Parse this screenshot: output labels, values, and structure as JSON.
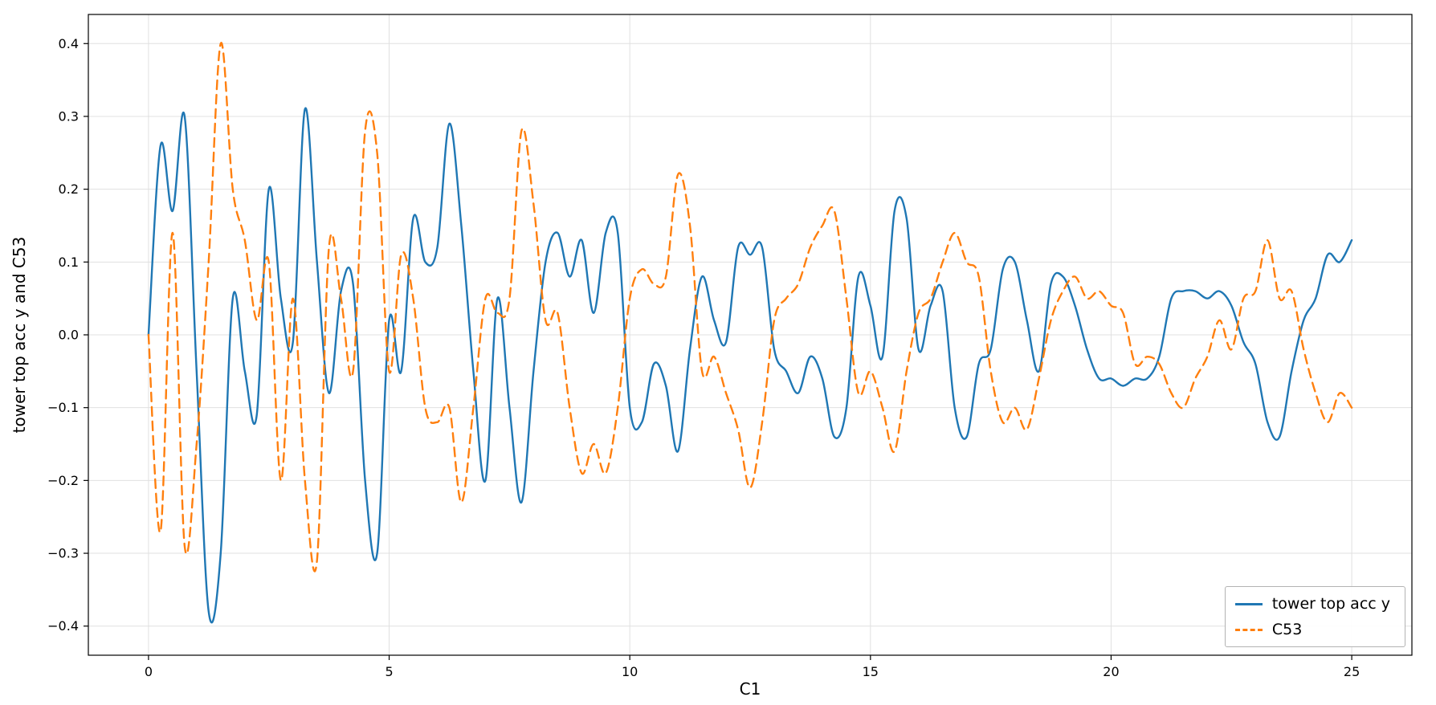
{
  "chart_data": {
    "type": "line",
    "title": "",
    "xlabel": "C1",
    "ylabel": "tower top acc y and C53",
    "xlim": [
      -1.25,
      26.25
    ],
    "ylim": [
      -0.44,
      0.44
    ],
    "xticks": [
      0,
      5,
      10,
      15,
      20,
      25
    ],
    "yticks": [
      -0.4,
      -0.3,
      -0.2,
      -0.1,
      0.0,
      0.1,
      0.2,
      0.3,
      0.4
    ],
    "grid": true,
    "grid_color": "#e0e0e0",
    "frame_color": "#000000",
    "legend_position": "lower right",
    "x": [
      0,
      0.25,
      0.5,
      0.75,
      1,
      1.25,
      1.5,
      1.75,
      2,
      2.25,
      2.5,
      2.75,
      3,
      3.25,
      3.5,
      3.75,
      4,
      4.25,
      4.5,
      4.75,
      5,
      5.25,
      5.5,
      5.75,
      6,
      6.25,
      6.5,
      6.75,
      7,
      7.25,
      7.5,
      7.75,
      8,
      8.25,
      8.5,
      8.75,
      9,
      9.25,
      9.5,
      9.75,
      10,
      10.25,
      10.5,
      10.75,
      11,
      11.25,
      11.5,
      11.75,
      12,
      12.25,
      12.5,
      12.75,
      13,
      13.25,
      13.5,
      13.75,
      14,
      14.25,
      14.5,
      14.75,
      15,
      15.25,
      15.5,
      15.75,
      16,
      16.25,
      16.5,
      16.75,
      17,
      17.25,
      17.5,
      17.75,
      18,
      18.25,
      18.5,
      18.75,
      19,
      19.25,
      19.5,
      19.75,
      20,
      20.25,
      20.5,
      20.75,
      21,
      21.25,
      21.5,
      21.75,
      22,
      22.25,
      22.5,
      22.75,
      23,
      23.25,
      23.5,
      23.75,
      24,
      24.25,
      24.5,
      24.75,
      25
    ],
    "series": [
      {
        "name": "tower top acc y",
        "color": "#1f77b4",
        "style": "solid",
        "values": [
          0,
          0.26,
          0.17,
          0.3,
          -0.05,
          -0.38,
          -0.3,
          0.05,
          -0.05,
          -0.11,
          0.2,
          0.05,
          -0.01,
          0.31,
          0.1,
          -0.08,
          0.06,
          0.07,
          -0.2,
          -0.3,
          0.02,
          -0.05,
          0.16,
          0.1,
          0.12,
          0.29,
          0.15,
          -0.05,
          -0.2,
          0.05,
          -0.1,
          -0.23,
          -0.05,
          0.1,
          0.14,
          0.08,
          0.13,
          0.03,
          0.14,
          0.14,
          -0.1,
          -0.12,
          -0.04,
          -0.07,
          -0.16,
          -0.02,
          0.08,
          0.02,
          -0.01,
          0.12,
          0.11,
          0.12,
          -0.02,
          -0.05,
          -0.08,
          -0.03,
          -0.06,
          -0.14,
          -0.1,
          0.08,
          0.04,
          -0.03,
          0.17,
          0.16,
          -0.02,
          0.04,
          0.06,
          -0.1,
          -0.14,
          -0.04,
          -0.02,
          0.09,
          0.1,
          0.02,
          -0.05,
          0.07,
          0.08,
          0.04,
          -0.02,
          -0.06,
          -0.06,
          -0.07,
          -0.06,
          -0.06,
          -0.03,
          0.05,
          0.06,
          0.06,
          0.05,
          0.06,
          0.04,
          -0.01,
          -0.04,
          -0.12,
          -0.14,
          -0.05,
          0.02,
          0.05,
          0.11,
          0.1,
          0.13
        ]
      },
      {
        "name": "C53",
        "color": "#ff7f0e",
        "style": "dashed",
        "values": [
          0,
          -0.27,
          0.14,
          -0.29,
          -0.15,
          0.1,
          0.4,
          0.2,
          0.13,
          0.02,
          0.1,
          -0.2,
          0.05,
          -0.2,
          -0.31,
          0.12,
          0.05,
          -0.05,
          0.28,
          0.25,
          -0.05,
          0.11,
          0.05,
          -0.1,
          -0.12,
          -0.1,
          -0.23,
          -0.1,
          0.05,
          0.03,
          0.05,
          0.28,
          0.18,
          0.02,
          0.03,
          -0.1,
          -0.19,
          -0.15,
          -0.19,
          -0.1,
          0.05,
          0.09,
          0.07,
          0.08,
          0.22,
          0.15,
          -0.05,
          -0.03,
          -0.08,
          -0.13,
          -0.21,
          -0.12,
          0.02,
          0.05,
          0.07,
          0.12,
          0.15,
          0.17,
          0.05,
          -0.08,
          -0.05,
          -0.1,
          -0.16,
          -0.05,
          0.03,
          0.05,
          0.1,
          0.14,
          0.1,
          0.08,
          -0.05,
          -0.12,
          -0.1,
          -0.13,
          -0.06,
          0.02,
          0.06,
          0.08,
          0.05,
          0.06,
          0.04,
          0.03,
          -0.04,
          -0.03,
          -0.04,
          -0.08,
          -0.1,
          -0.06,
          -0.03,
          0.02,
          -0.02,
          0.05,
          0.06,
          0.13,
          0.05,
          0.06,
          -0.02,
          -0.08,
          -0.12,
          -0.08,
          -0.1
        ]
      }
    ]
  },
  "legend": {
    "items": [
      {
        "label": "tower top acc y"
      },
      {
        "label": "C53"
      }
    ]
  }
}
